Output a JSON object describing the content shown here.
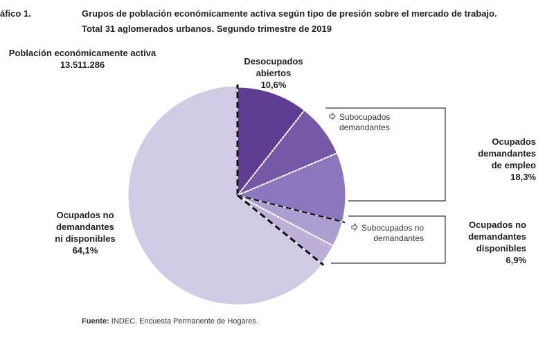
{
  "figure_label": "áfico 1.",
  "title_line1": "Grupos de población económicamente activa según tipo de presión sobre el mercado de trabajo.",
  "title_line2": "Total 31 aglomerados urbanos. Segundo trimestre de 2019",
  "pea": {
    "label": "Población económicamente activa",
    "value": "13.511.286"
  },
  "labels": {
    "desocupados": [
      "Desocupados",
      "abiertos",
      "10,6%"
    ],
    "sub_dem": [
      "Subocupados",
      "demandantes"
    ],
    "ocup_dem": [
      "Ocupados",
      "demandantes",
      "de empleo",
      "18,3%"
    ],
    "sub_nodem": [
      "Subocupados no",
      "demandantes"
    ],
    "ocup_disp": [
      "Ocupados no",
      "demandantes",
      "disponibles",
      "6,9%"
    ],
    "ocup_nodisp": [
      "Ocupados no",
      "demandantes",
      "ni disponibles",
      "64,1%"
    ]
  },
  "source": {
    "bold": "Fuente:",
    "text": " INDEC. Encuesta Permanente de Hogares."
  },
  "chart_data": {
    "type": "pie",
    "title": "Grupos de población económicamente activa según tipo de presión sobre el mercado de trabajo.",
    "start": "top, clockwise",
    "slices": [
      {
        "name": "Desocupados abiertos",
        "value": 10.6,
        "color": "#5e3d93"
      },
      {
        "name": "Subocupados demandantes",
        "value": 8.0,
        "color": "#7559a7"
      },
      {
        "name": "Ocupados demandantes de empleo (resto)",
        "value": 10.3,
        "color": "#8b77bd"
      },
      {
        "name": "Subocupados no demandantes",
        "value": 3.8,
        "color": "#ac9fd0"
      },
      {
        "name": "Ocupados no demandantes disponibles (resto)",
        "value": 3.1,
        "color": "#bdb1da"
      },
      {
        "name": "Ocupados no demandantes ni disponibles",
        "value": 64.1,
        "color": "#d2cbe6"
      }
    ],
    "groups": [
      {
        "name": "Desocupados abiertos",
        "value": 10.6
      },
      {
        "name": "Ocupados demandantes de empleo",
        "value": 18.3
      },
      {
        "name": "Ocupados no demandantes disponibles",
        "value": 6.9
      },
      {
        "name": "Ocupados no demandantes ni disponibles",
        "value": 64.1
      }
    ]
  }
}
